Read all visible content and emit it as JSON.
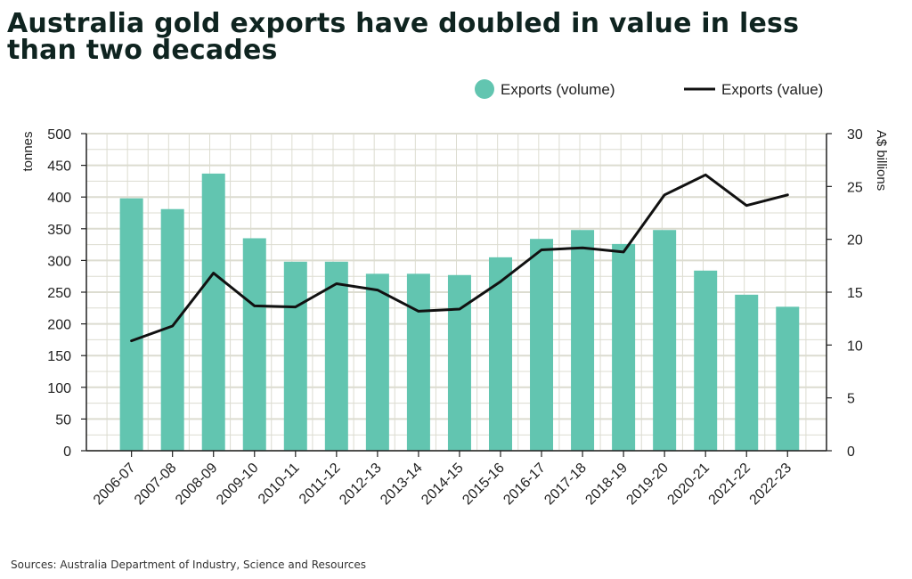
{
  "title": {
    "line1": "Australia gold exports have doubled in value in less",
    "line2": "than two decades"
  },
  "source": "Sources: Australia Department of Industry, Science and Resources",
  "colors": {
    "bar": "#62c5b0",
    "line": "#111111",
    "grid": "#dcdcd0",
    "axis": "#222222"
  },
  "chart_data": {
    "type": "bar+line",
    "categories": [
      "2006-07",
      "2007-08",
      "2008-09",
      "2009-10",
      "2010-11",
      "2011-12",
      "2012-13",
      "2013-14",
      "2014-15",
      "2015-16",
      "2016-17",
      "2017-18",
      "2018-19",
      "2019-20",
      "2020-21",
      "2021-22",
      "2022-23"
    ],
    "series": [
      {
        "name": "Exports (volume)",
        "type": "bar",
        "axis": "left",
        "values": [
          398,
          381,
          437,
          335,
          298,
          298,
          279,
          279,
          277,
          305,
          334,
          348,
          326,
          348,
          284,
          246,
          227
        ]
      },
      {
        "name": "Exports (value)",
        "type": "line",
        "axis": "right",
        "values": [
          10.4,
          11.8,
          16.8,
          13.7,
          13.6,
          15.8,
          15.2,
          13.2,
          13.4,
          16.0,
          19.0,
          19.2,
          18.8,
          24.2,
          26.1,
          23.2,
          24.2
        ]
      }
    ],
    "y_left": {
      "label": "tonnes",
      "ylim": [
        0,
        500
      ],
      "ticks": [
        "0",
        "50",
        "100",
        "150",
        "200",
        "250",
        "300",
        "350",
        "400",
        "450",
        "500"
      ]
    },
    "y_right": {
      "label": "A$ billions",
      "ylim": [
        0,
        30
      ],
      "ticks": [
        "0",
        "5",
        "10",
        "15",
        "20",
        "25",
        "30"
      ]
    },
    "legend": {
      "position": "top-right",
      "items": [
        "Exports (volume)",
        "Exports (value)"
      ]
    },
    "grid": true
  }
}
